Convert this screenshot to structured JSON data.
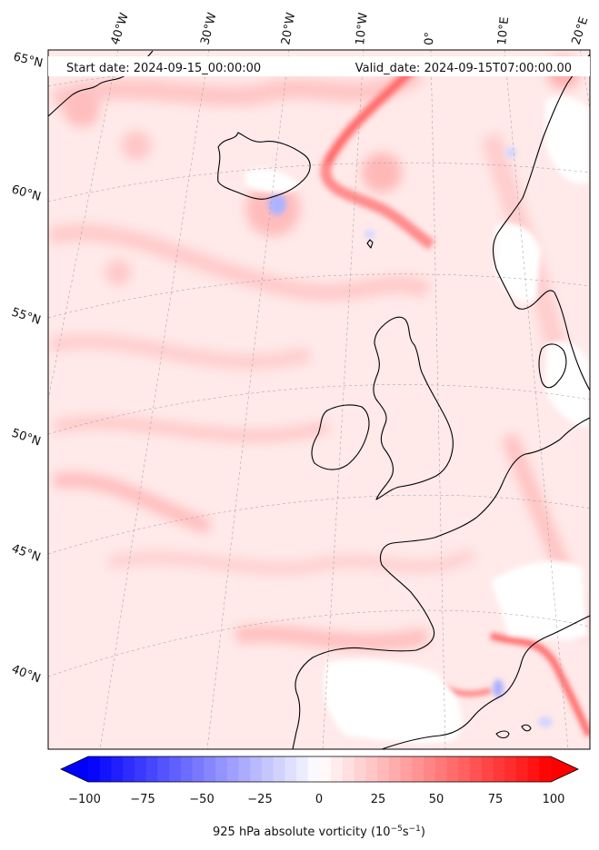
{
  "header": {
    "start_date": "Start date: 2024-09-15_00:00:00",
    "valid_date": "Valid_date: 2024-09-15T07:00:00.00"
  },
  "longitude_labels": [
    "40°W",
    "30°W",
    "20°W",
    "10°W",
    "0°",
    "10°E",
    "20°E"
  ],
  "latitude_labels": [
    "65°N",
    "60°N",
    "55°N",
    "50°N",
    "45°N",
    "40°N"
  ],
  "colorbar": {
    "ticks": [
      "−100",
      "−75",
      "−50",
      "−25",
      "0",
      "25",
      "50",
      "75",
      "100"
    ],
    "label": "925 hPa absolute vorticity (10",
    "label_exp1": "−5",
    "label_mid": "s",
    "label_exp2": "−1",
    "label_end": ")",
    "min": -100,
    "max": 100,
    "low_color": "#0000ff",
    "mid_color": "#ffffff",
    "high_color": "#ff0000"
  },
  "field_colors": {
    "background": "#ffe9e9",
    "light": "#ffd3d3",
    "medium": "#ffb6b6",
    "strong": "#ff8a8a",
    "intense": "#ff4a4a",
    "negative": "#c9cdff"
  }
}
